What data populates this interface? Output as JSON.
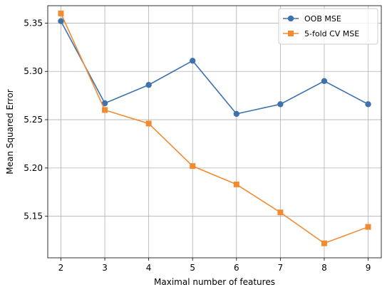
{
  "chart_data": {
    "type": "line",
    "title": "",
    "xlabel": "Maximal number of features",
    "ylabel": "Mean Squared Error",
    "x": [
      2,
      3,
      4,
      5,
      6,
      7,
      8,
      9
    ],
    "xlim": [
      1.7,
      9.3
    ],
    "ylim": [
      5.107,
      5.368
    ],
    "x_ticks": [
      2,
      3,
      4,
      5,
      6,
      7,
      8,
      9
    ],
    "y_ticks": [
      5.15,
      5.2,
      5.25,
      5.3,
      5.35
    ],
    "x_tick_labels": [
      "2",
      "3",
      "4",
      "5",
      "6",
      "7",
      "8",
      "9"
    ],
    "y_tick_labels": [
      "5.15",
      "5.20",
      "5.25",
      "5.30",
      "5.35"
    ],
    "grid": true,
    "legend_position": "top-right",
    "series": [
      {
        "name": "OOB MSE",
        "marker": "circle",
        "color": "#3d72ad",
        "values": [
          5.352,
          5.267,
          5.286,
          5.311,
          5.256,
          5.266,
          5.29,
          5.266
        ]
      },
      {
        "name": "5-fold CV MSE",
        "marker": "square",
        "color": "#f28a30",
        "values": [
          5.36,
          5.26,
          5.246,
          5.202,
          5.183,
          5.154,
          5.122,
          5.139
        ]
      }
    ]
  }
}
